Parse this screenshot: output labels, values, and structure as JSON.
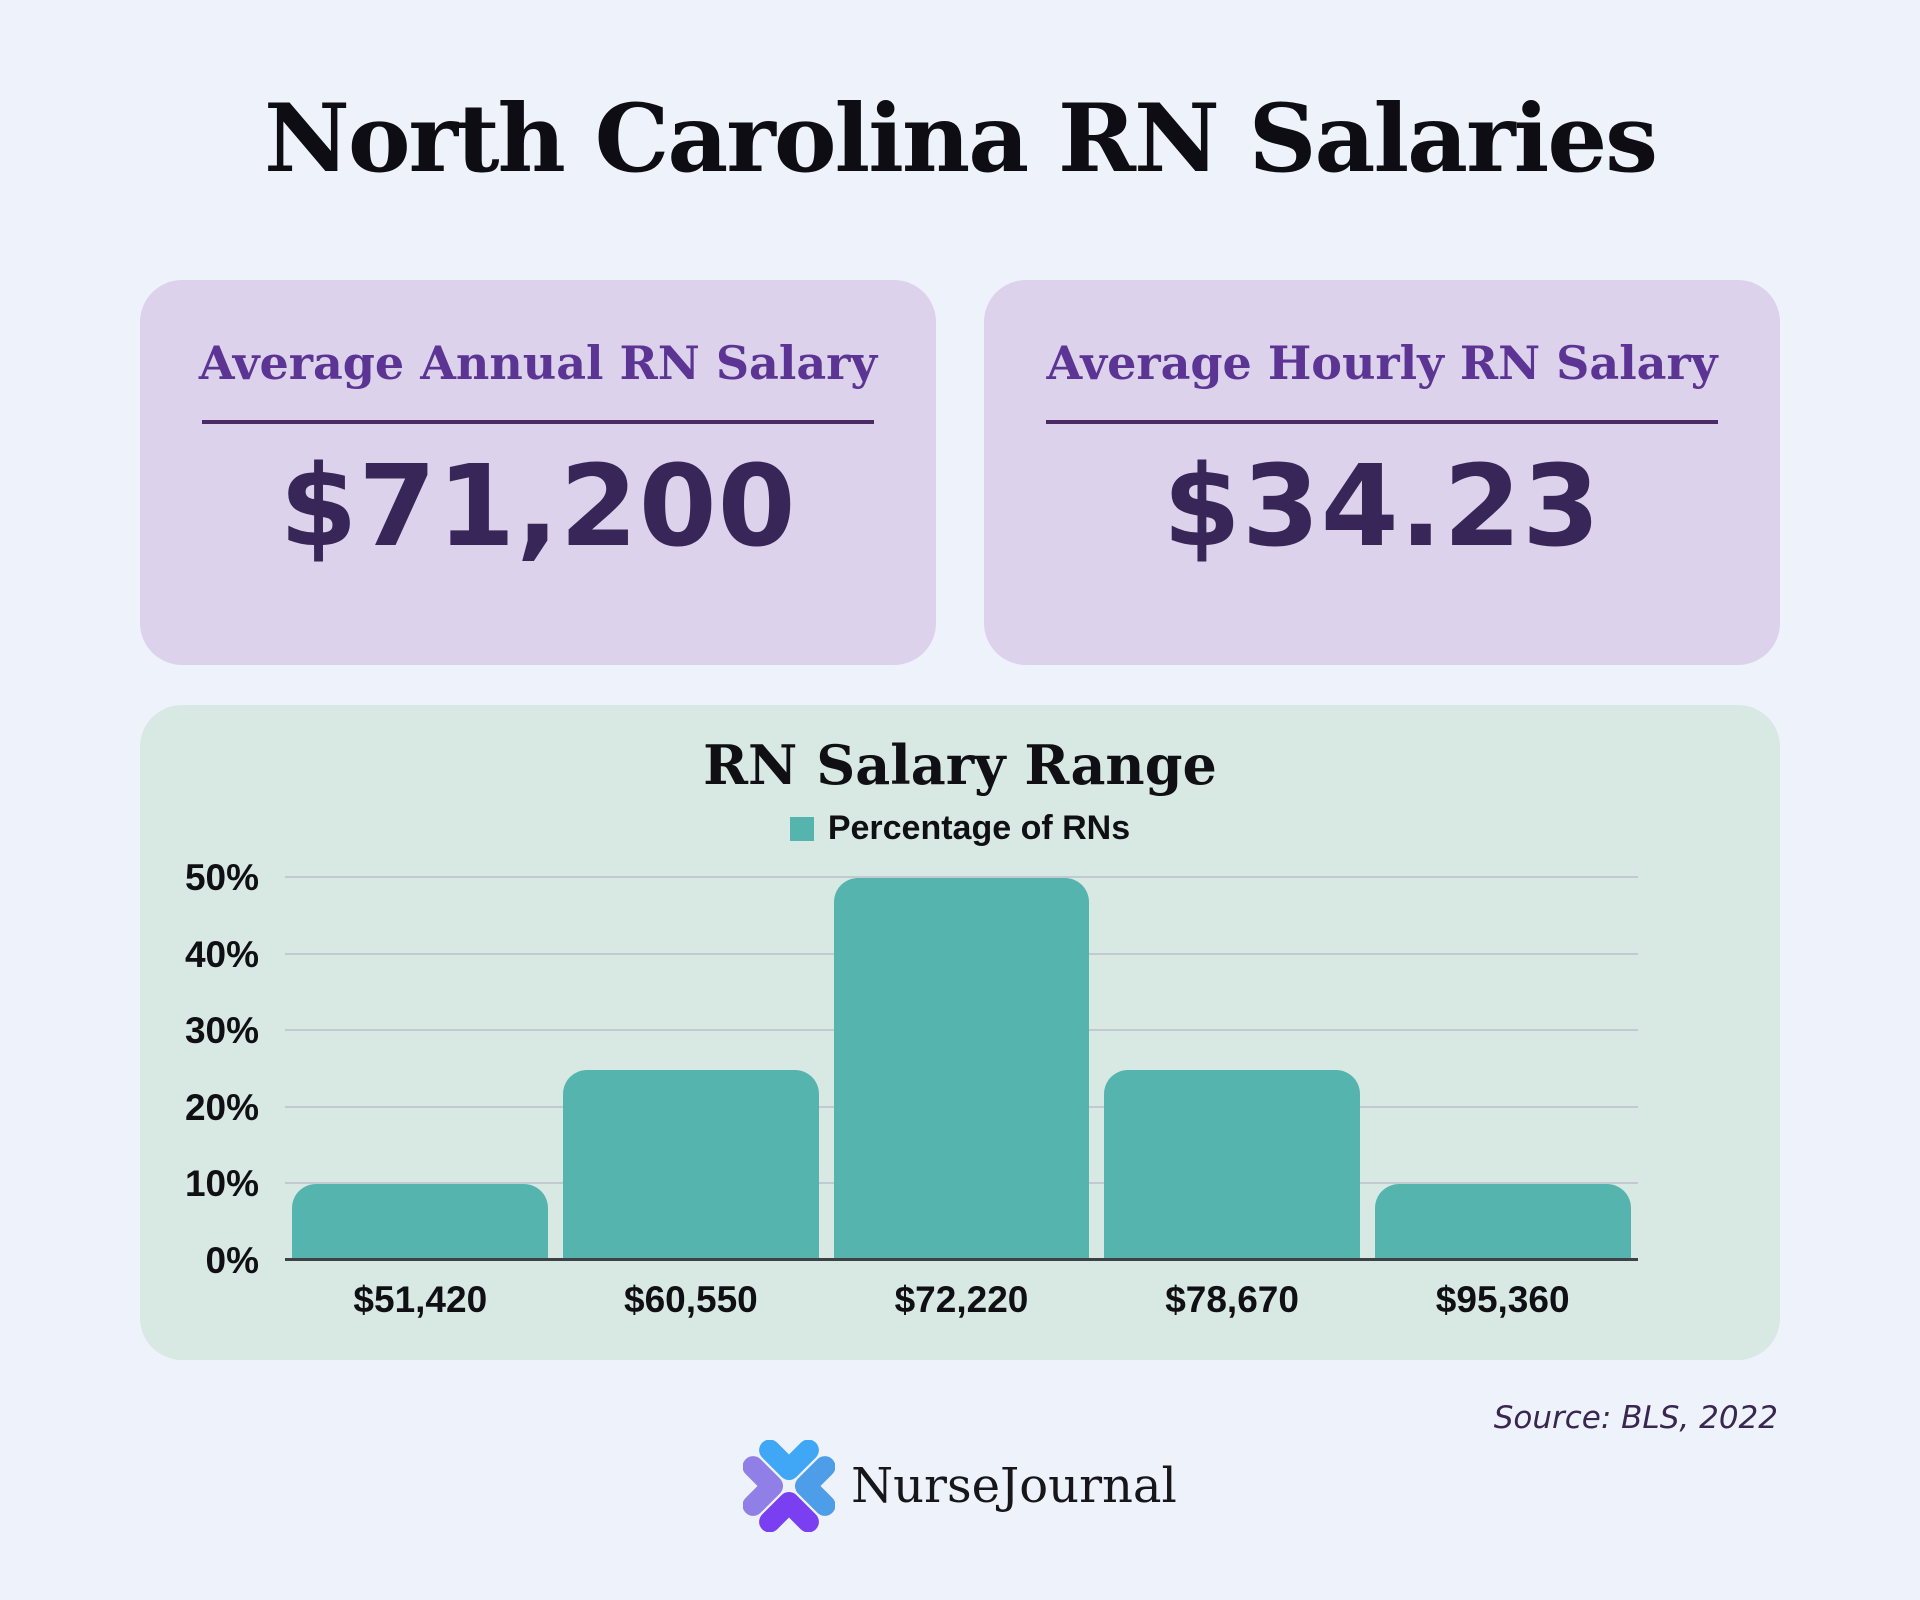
{
  "infographic": {
    "title": "North Carolina RN Salaries",
    "source": "Source: BLS, 2022",
    "brand": "NurseJournal"
  },
  "stat_cards": [
    {
      "label": "Average Annual RN Salary",
      "value": "$71,200"
    },
    {
      "label": "Average Hourly RN Salary",
      "value": "$34.23"
    }
  ],
  "chart_data": {
    "type": "bar",
    "title": "RN Salary Range",
    "legend": [
      {
        "label": "Percentage of RNs",
        "color": "#56B4AF"
      }
    ],
    "legend_position": "top",
    "categories": [
      "$51,420",
      "$60,550",
      "$72,220",
      "$78,670",
      "$95,360"
    ],
    "series": [
      {
        "name": "Percentage of RNs",
        "values": [
          10,
          25,
          50,
          25,
          10
        ]
      }
    ],
    "xlabel": "",
    "ylabel": "",
    "ylim": [
      0,
      50
    ],
    "yticks": [
      "0%",
      "10%",
      "20%",
      "30%",
      "40%",
      "50%"
    ],
    "grid": true,
    "bar_color": "#56B4AF"
  },
  "colors": {
    "page_bg": "#EEF3FB",
    "stat_card_bg": "#DCD2EB",
    "stat_label": "#5C3493",
    "stat_divider": "#4B2A66",
    "stat_value": "#392658",
    "chart_card_bg": "#D8E8E2",
    "bar": "#56B4AF",
    "gridline": "#C3C9D1",
    "axis_line": "#3E4246",
    "heading_text": "#0E0D13",
    "source_text": "#3A2750",
    "logo_blue_top": "#3FA7F5",
    "logo_blue_right": "#4E9DE9",
    "logo_purple_left": "#8F7FE6",
    "logo_purple_bottom": "#7B3FF2"
  }
}
